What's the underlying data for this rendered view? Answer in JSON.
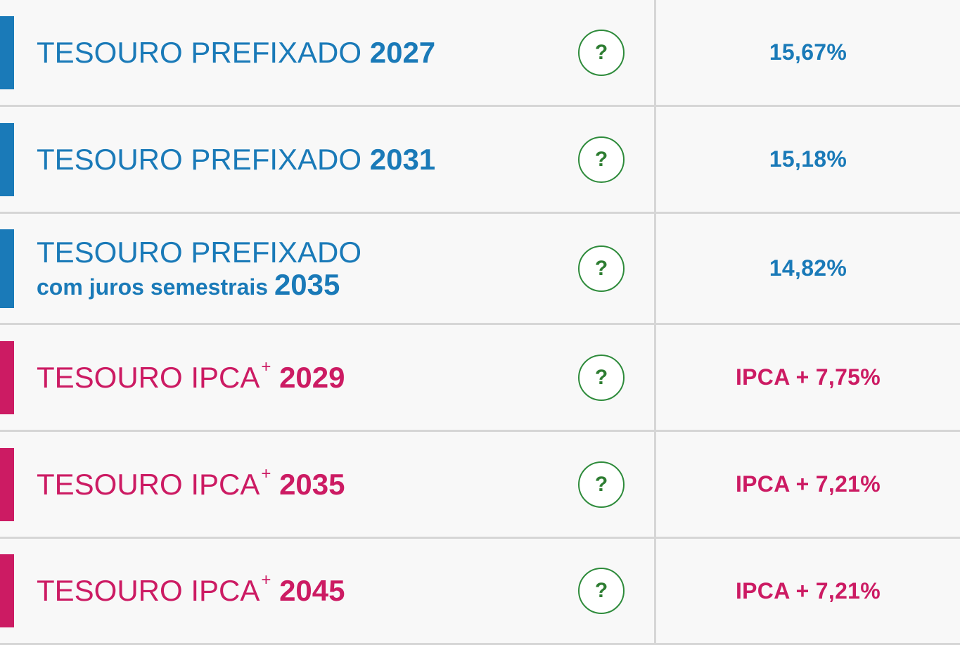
{
  "colors": {
    "prefixado": "#1a7ab8",
    "ipca": "#cc1b63",
    "help": "#2e8b3b"
  },
  "help_icon": "question-mark-circle-icon",
  "rows": [
    {
      "group": "prefixado",
      "name": "TESOURO PREFIXADO",
      "year": "2027",
      "rate": "15,67%",
      "help": "?"
    },
    {
      "group": "prefixado",
      "name": "TESOURO PREFIXADO",
      "year": "2031",
      "rate": "15,18%",
      "help": "?"
    },
    {
      "group": "prefixado",
      "name": "TESOURO PREFIXADO",
      "subtitle": "com juros semestrais",
      "year": "2035",
      "rate": "14,82%",
      "help": "?"
    },
    {
      "group": "ipca",
      "name": "TESOURO IPCA",
      "sup": "+",
      "year": "2029",
      "rate": "IPCA + 7,75%",
      "help": "?"
    },
    {
      "group": "ipca",
      "name": "TESOURO IPCA",
      "sup": "+",
      "year": "2035",
      "rate": "IPCA + 7,21%",
      "help": "?"
    },
    {
      "group": "ipca",
      "name": "TESOURO IPCA",
      "sup": "+",
      "year": "2045",
      "rate": "IPCA + 7,21%",
      "help": "?"
    }
  ]
}
